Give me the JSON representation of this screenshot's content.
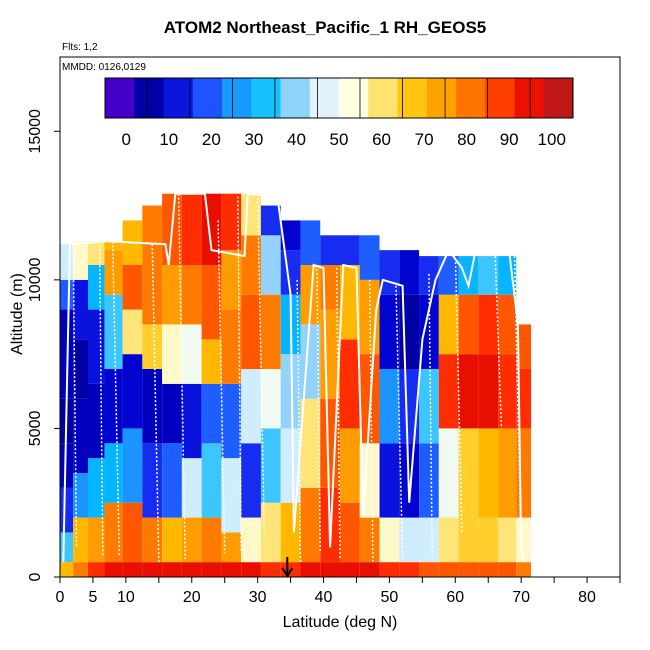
{
  "header": {
    "title": "ATOM2 Northeast_Pacific_1 RH_GEOS5",
    "flights_note": "Flts: 1,2",
    "dates_note": "MMDD: 0126,0129"
  },
  "chart_data": {
    "type": "heatmap",
    "title": "ATOM2 Northeast_Pacific_1 RH_GEOS5",
    "xlabel": "Latitude (deg N)",
    "ylabel": "Altitude (m)",
    "xlim": [
      0,
      85
    ],
    "ylim": [
      0,
      17500
    ],
    "x_ticks": [
      0,
      5,
      10,
      20,
      30,
      40,
      50,
      60,
      70,
      80
    ],
    "y_ticks": [
      0,
      5000,
      10000,
      15000
    ],
    "grid": false,
    "colorbar": {
      "placement": "top, inside plot",
      "range": [
        -5,
        105
      ],
      "tick_values": [
        0,
        10,
        20,
        30,
        40,
        50,
        60,
        70,
        80,
        90,
        100
      ],
      "colors": [
        "#7F00FF",
        "#00008B",
        "#0000CD",
        "#1E3CFF",
        "#1E90FF",
        "#00BFFF",
        "#87CEFA",
        "#E0F4FF",
        "#FFFFE0",
        "#FFE066",
        "#FFC000",
        "#FF9900",
        "#FF6600",
        "#FF2A00",
        "#DC0000",
        "#A52A2A"
      ]
    },
    "marker": {
      "label": "arrow",
      "latitude": 34.5,
      "altitude": 0
    },
    "rh_profiles": [
      {
        "lat": 1.0,
        "bands": [
          [
            0,
            500,
            70
          ],
          [
            500,
            1500,
            35
          ],
          [
            1500,
            3000,
            15
          ],
          [
            3000,
            4500,
            8
          ],
          [
            4500,
            6000,
            5
          ],
          [
            6000,
            9000,
            8
          ],
          [
            9000,
            10000,
            20
          ],
          [
            10000,
            11200,
            45
          ]
        ]
      },
      {
        "lat": 3.0,
        "bands": [
          [
            0,
            500,
            80
          ],
          [
            500,
            2000,
            70
          ],
          [
            2000,
            3500,
            25
          ],
          [
            3500,
            6000,
            8
          ],
          [
            6000,
            8000,
            5
          ],
          [
            8000,
            10000,
            12
          ],
          [
            10000,
            11300,
            55
          ]
        ]
      },
      {
        "lat": 5.5,
        "bands": [
          [
            0,
            500,
            90
          ],
          [
            500,
            2000,
            75
          ],
          [
            2000,
            4000,
            30
          ],
          [
            4000,
            6500,
            8
          ],
          [
            6500,
            9000,
            12
          ],
          [
            9000,
            10500,
            30
          ],
          [
            10500,
            11300,
            60
          ]
        ]
      },
      {
        "lat": 8.0,
        "bands": [
          [
            0,
            500,
            95
          ],
          [
            500,
            2500,
            80
          ],
          [
            2500,
            4500,
            30
          ],
          [
            4500,
            7000,
            10
          ],
          [
            7000,
            9500,
            35
          ],
          [
            9500,
            11000,
            75
          ],
          [
            11000,
            11300,
            70
          ]
        ]
      },
      {
        "lat": 11.0,
        "bands": [
          [
            0,
            500,
            95
          ],
          [
            500,
            2500,
            85
          ],
          [
            2500,
            5000,
            25
          ],
          [
            5000,
            7500,
            10
          ],
          [
            7500,
            9000,
            60
          ],
          [
            9000,
            10500,
            85
          ],
          [
            10500,
            12000,
            70
          ]
        ]
      },
      {
        "lat": 14.0,
        "bands": [
          [
            0,
            500,
            95
          ],
          [
            500,
            2000,
            80
          ],
          [
            2000,
            4500,
            15
          ],
          [
            4500,
            7000,
            8
          ],
          [
            7000,
            8500,
            65
          ],
          [
            8500,
            10500,
            80
          ],
          [
            10500,
            12500,
            80
          ]
        ]
      },
      {
        "lat": 17.0,
        "bands": [
          [
            0,
            500,
            95
          ],
          [
            500,
            2000,
            70
          ],
          [
            2000,
            4500,
            20
          ],
          [
            4500,
            6500,
            8
          ],
          [
            6500,
            8500,
            55
          ],
          [
            8500,
            10500,
            75
          ],
          [
            10500,
            12900,
            85
          ]
        ]
      },
      {
        "lat": 20.0,
        "bands": [
          [
            0,
            500,
            95
          ],
          [
            500,
            2000,
            75
          ],
          [
            2000,
            4000,
            45
          ],
          [
            4000,
            6500,
            12
          ],
          [
            6500,
            8500,
            50
          ],
          [
            8500,
            10500,
            80
          ],
          [
            10500,
            12900,
            90
          ]
        ]
      },
      {
        "lat": 23.0,
        "bands": [
          [
            0,
            500,
            95
          ],
          [
            500,
            2000,
            80
          ],
          [
            2000,
            4500,
            35
          ],
          [
            4500,
            6500,
            20
          ],
          [
            6500,
            8000,
            70
          ],
          [
            8000,
            10500,
            85
          ],
          [
            10500,
            12900,
            95
          ]
        ]
      },
      {
        "lat": 26.0,
        "bands": [
          [
            0,
            500,
            95
          ],
          [
            500,
            1500,
            75
          ],
          [
            1500,
            4000,
            45
          ],
          [
            4000,
            6500,
            20
          ],
          [
            6500,
            9000,
            80
          ],
          [
            9000,
            11000,
            75
          ],
          [
            11000,
            12900,
            90
          ]
        ]
      },
      {
        "lat": 29.0,
        "bands": [
          [
            0,
            500,
            95
          ],
          [
            500,
            2000,
            55
          ],
          [
            2000,
            4500,
            15
          ],
          [
            4500,
            7000,
            45
          ],
          [
            7000,
            9500,
            85
          ],
          [
            9500,
            11500,
            80
          ],
          [
            11500,
            12900,
            60
          ]
        ]
      },
      {
        "lat": 32.0,
        "bands": [
          [
            0,
            500,
            90
          ],
          [
            500,
            2500,
            60
          ],
          [
            2500,
            5000,
            35
          ],
          [
            5000,
            7000,
            50
          ],
          [
            7000,
            9500,
            80
          ],
          [
            9500,
            11500,
            40
          ],
          [
            11500,
            12500,
            15
          ]
        ]
      },
      {
        "lat": 35.0,
        "bands": [
          [
            0,
            500,
            90
          ],
          [
            500,
            2500,
            70
          ],
          [
            2500,
            5000,
            45
          ],
          [
            5000,
            7500,
            40
          ],
          [
            7500,
            9500,
            30
          ],
          [
            9500,
            11000,
            15
          ],
          [
            11000,
            12000,
            10
          ]
        ]
      },
      {
        "lat": 38.0,
        "bands": [
          [
            0,
            500,
            95
          ],
          [
            500,
            3000,
            80
          ],
          [
            3000,
            6000,
            60
          ],
          [
            6000,
            8500,
            40
          ],
          [
            8500,
            10500,
            75
          ],
          [
            10500,
            12000,
            20
          ]
        ]
      },
      {
        "lat": 41.0,
        "bands": [
          [
            0,
            500,
            95
          ],
          [
            500,
            3000,
            90
          ],
          [
            3000,
            6000,
            85
          ],
          [
            6000,
            9000,
            75
          ],
          [
            9000,
            10500,
            80
          ],
          [
            10500,
            11500,
            15
          ]
        ]
      },
      {
        "lat": 44.0,
        "bands": [
          [
            0,
            500,
            95
          ],
          [
            500,
            2500,
            85
          ],
          [
            2500,
            5000,
            75
          ],
          [
            5000,
            8000,
            90
          ],
          [
            8000,
            10500,
            70
          ],
          [
            10500,
            11500,
            15
          ]
        ]
      },
      {
        "lat": 47.0,
        "bands": [
          [
            0,
            500,
            95
          ],
          [
            500,
            2000,
            80
          ],
          [
            2000,
            4500,
            55
          ],
          [
            4500,
            7500,
            85
          ],
          [
            7500,
            10000,
            75
          ],
          [
            10000,
            11500,
            20
          ]
        ]
      },
      {
        "lat": 50.0,
        "bands": [
          [
            0,
            500,
            90
          ],
          [
            500,
            2000,
            55
          ],
          [
            2000,
            4500,
            12
          ],
          [
            4500,
            7000,
            25
          ],
          [
            7000,
            9500,
            10
          ],
          [
            9500,
            11000,
            15
          ]
        ]
      },
      {
        "lat": 53.0,
        "bands": [
          [
            0,
            500,
            90
          ],
          [
            500,
            2000,
            45
          ],
          [
            2000,
            4500,
            10
          ],
          [
            4500,
            7000,
            15
          ],
          [
            7000,
            9500,
            5
          ],
          [
            9500,
            11000,
            10
          ]
        ]
      },
      {
        "lat": 56.0,
        "bands": [
          [
            0,
            500,
            85
          ],
          [
            500,
            2000,
            45
          ],
          [
            2000,
            4500,
            20
          ],
          [
            4500,
            7000,
            35
          ],
          [
            7000,
            9500,
            10
          ],
          [
            9500,
            10800,
            15
          ]
        ]
      },
      {
        "lat": 59.0,
        "bands": [
          [
            0,
            500,
            85
          ],
          [
            500,
            2000,
            60
          ],
          [
            2000,
            5000,
            50
          ],
          [
            5000,
            7500,
            90
          ],
          [
            7500,
            9500,
            70
          ],
          [
            9500,
            10800,
            20
          ]
        ]
      },
      {
        "lat": 62.0,
        "bands": [
          [
            0,
            500,
            85
          ],
          [
            500,
            2000,
            65
          ],
          [
            2000,
            5000,
            65
          ],
          [
            5000,
            7500,
            95
          ],
          [
            7500,
            9500,
            85
          ],
          [
            9500,
            10800,
            30
          ]
        ]
      },
      {
        "lat": 65.0,
        "bands": [
          [
            0,
            500,
            85
          ],
          [
            500,
            2000,
            65
          ],
          [
            2000,
            5000,
            70
          ],
          [
            5000,
            7500,
            95
          ],
          [
            7500,
            9500,
            90
          ],
          [
            9500,
            10800,
            35
          ]
        ]
      },
      {
        "lat": 68.0,
        "bands": [
          [
            0,
            500,
            85
          ],
          [
            500,
            2000,
            60
          ],
          [
            2000,
            5000,
            75
          ],
          [
            5000,
            7500,
            90
          ],
          [
            7500,
            9500,
            85
          ],
          [
            9500,
            10800,
            30
          ]
        ]
      },
      {
        "lat": 70.5,
        "bands": [
          [
            0,
            500,
            80
          ],
          [
            500,
            2000,
            55
          ],
          [
            2000,
            5000,
            80
          ],
          [
            5000,
            7000,
            90
          ],
          [
            7000,
            8500,
            85
          ]
        ]
      }
    ],
    "flight_track": [
      [
        0.5,
        500
      ],
      [
        1.5,
        11200
      ],
      [
        7,
        11300
      ],
      [
        16,
        11200
      ],
      [
        16.5,
        10500
      ],
      [
        17.5,
        12900
      ],
      [
        22,
        12900
      ],
      [
        23,
        11000
      ],
      [
        28,
        10800
      ],
      [
        28.5,
        12900
      ],
      [
        33,
        12800
      ],
      [
        35,
        9500
      ],
      [
        35.5,
        1500
      ],
      [
        38,
        9000
      ],
      [
        38.5,
        10500
      ],
      [
        40,
        10400
      ],
      [
        41,
        1000
      ],
      [
        43,
        10500
      ],
      [
        45,
        10400
      ],
      [
        46,
        2000
      ],
      [
        48,
        9000
      ],
      [
        49,
        10000
      ],
      [
        52,
        9800
      ],
      [
        53,
        2500
      ],
      [
        55,
        8000
      ],
      [
        57,
        10000
      ],
      [
        58,
        10500
      ],
      [
        59,
        11000
      ],
      [
        61,
        10400
      ],
      [
        62,
        9800
      ],
      [
        63,
        10900
      ],
      [
        65,
        11300
      ],
      [
        68,
        11300
      ],
      [
        69.5,
        8500
      ],
      [
        70,
        1000
      ],
      [
        70.5,
        500
      ]
    ],
    "descent_profiles": [
      [
        [
          2,
          11200
        ],
        [
          2.5,
          1000
        ]
      ],
      [
        [
          6,
          11300
        ],
        [
          6.5,
          700
        ]
      ],
      [
        [
          8,
          11300
        ],
        [
          9,
          700
        ]
      ],
      [
        [
          14,
          11200
        ],
        [
          15,
          500
        ]
      ],
      [
        [
          18,
          12900
        ],
        [
          19,
          600
        ]
      ],
      [
        [
          24,
          12000
        ],
        [
          25,
          800
        ]
      ],
      [
        [
          27,
          12800
        ],
        [
          27.5,
          800
        ]
      ],
      [
        [
          30,
          12900
        ],
        [
          31,
          1500
        ]
      ],
      [
        [
          36,
          10000
        ],
        [
          36.5,
          500
        ]
      ],
      [
        [
          39,
          10500
        ],
        [
          39.5,
          800
        ]
      ],
      [
        [
          42,
          10400
        ],
        [
          42.5,
          600
        ]
      ],
      [
        [
          47,
          10000
        ],
        [
          47.5,
          500
        ]
      ],
      [
        [
          51,
          9800
        ],
        [
          52,
          600
        ]
      ],
      [
        [
          56,
          10200
        ],
        [
          56.5,
          700
        ]
      ],
      [
        [
          60,
          11000
        ],
        [
          61,
          1500
        ]
      ],
      [
        [
          66,
          11200
        ],
        [
          67,
          5000
        ]
      ],
      [
        [
          69,
          10800
        ],
        [
          70,
          800
        ]
      ]
    ]
  }
}
